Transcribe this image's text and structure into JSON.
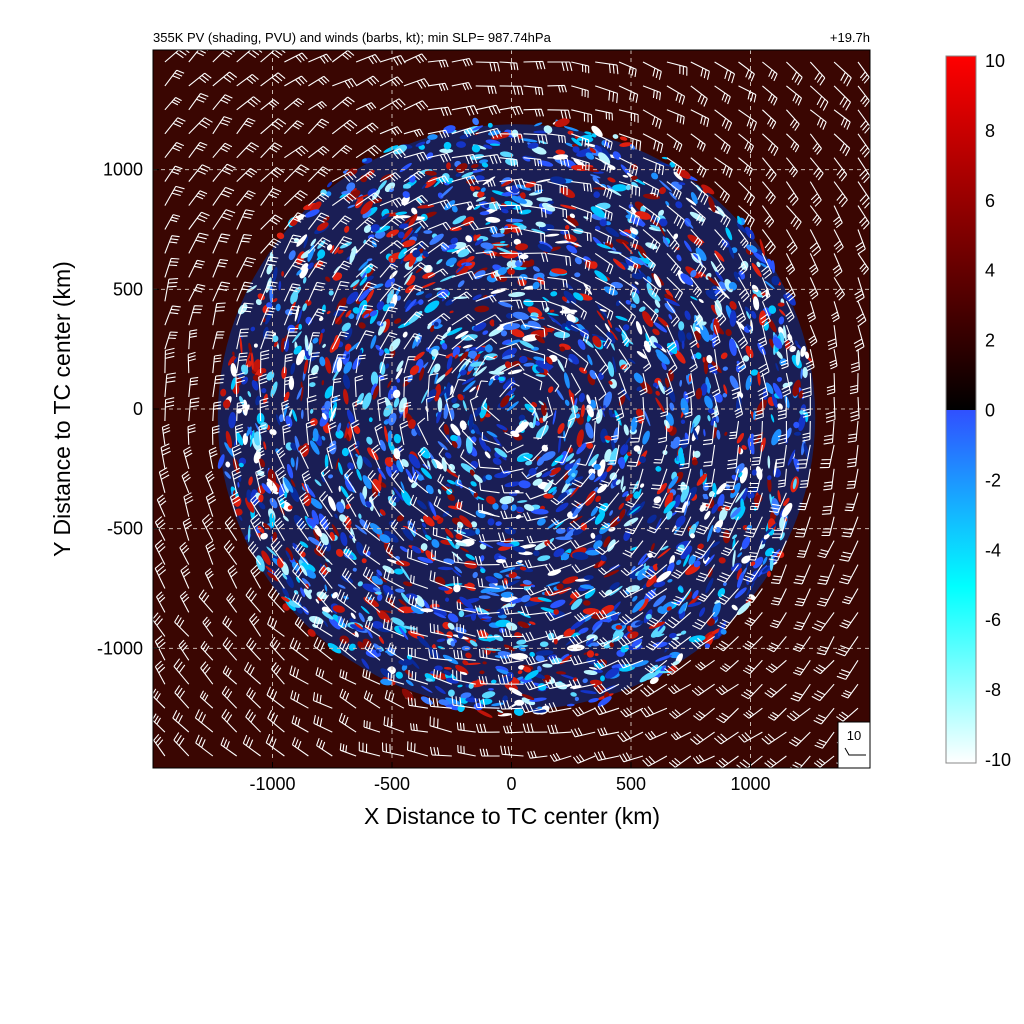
{
  "chart_data": {
    "type": "heatmap",
    "title": "355K PV (shading, PVU) and winds (barbs, kt); min SLP= 987.74hPa",
    "time_label": "+19.7h",
    "xlabel": "X Distance to TC center (km)",
    "ylabel": "Y Distance to TC center (km)",
    "xlim": [
      -1500,
      1500
    ],
    "ylim": [
      -1500,
      1500
    ],
    "x_ticks": [
      -1000,
      -500,
      0,
      500,
      1000
    ],
    "y_ticks": [
      -1000,
      -500,
      0,
      500,
      1000
    ],
    "x_tick_labels": [
      "-1000",
      "-500",
      "0",
      "500",
      "1000"
    ],
    "y_tick_labels": [
      "-1000",
      "-500",
      "0",
      "500",
      "1000"
    ],
    "grid": true,
    "field": {
      "name": "PV",
      "units": "PVU",
      "range": [
        -10,
        10
      ],
      "background_value": 1.5,
      "disturbed_region_radius_km": 1250
    },
    "colorbar": {
      "ticks": [
        10,
        8,
        6,
        4,
        2,
        0,
        -2,
        -4,
        -6,
        -8,
        -10
      ],
      "tick_labels": [
        "10",
        "8",
        "6",
        "4",
        "2",
        "0",
        "-2",
        "-4",
        "-6",
        "-8",
        "-10"
      ],
      "positive_colors": [
        "#000000",
        "#ff0000"
      ],
      "negative_colors": [
        "#3050ff",
        "#00ffff",
        "#ffffff"
      ]
    },
    "wind_barbs": {
      "units": "kt",
      "spacing_km": 100,
      "color": "#ffffff",
      "rotation": "cyclonic",
      "reference_speed": 10,
      "reference_label": "10"
    }
  }
}
